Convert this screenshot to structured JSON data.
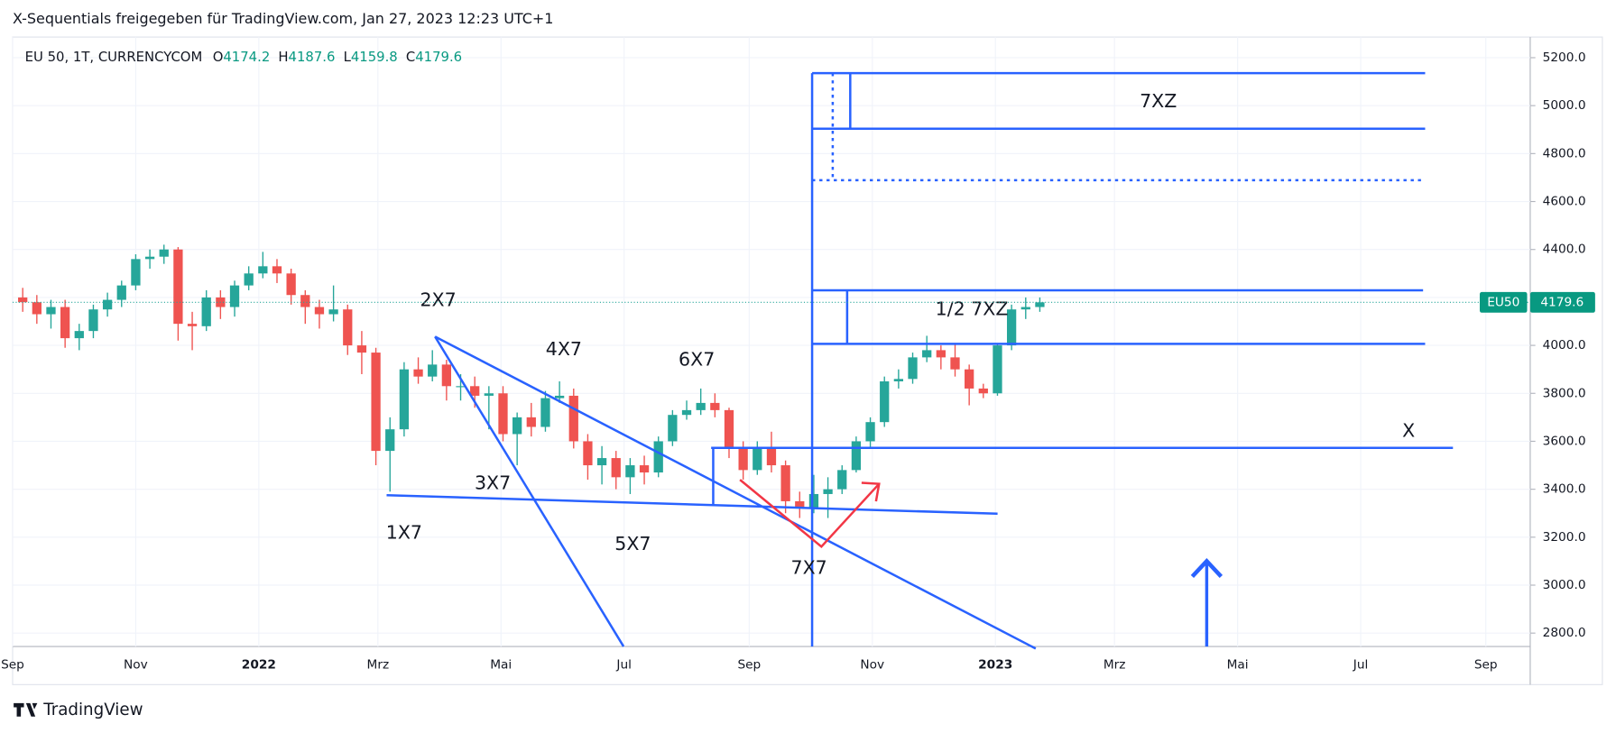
{
  "header": {
    "title": "X-Sequentials freigegeben für TradingView.com, Jan 27, 2023 12:23 UTC+1"
  },
  "legend": {
    "symbol": "EU 50, 1T, CURRENCYCOM",
    "o_label": "O",
    "o": "4174.2",
    "h_label": "H",
    "h": "4187.6",
    "l_label": "L",
    "l": "4159.8",
    "c_label": "C",
    "c": "4179.6"
  },
  "price_tag": {
    "name": "EU50",
    "value": "4179.6"
  },
  "footer": {
    "brand": "TradingView"
  },
  "annotations": [
    "2X7",
    "4X7",
    "6X7",
    "3X7",
    "1X7",
    "5X7",
    "7X7",
    "7XZ",
    "1/2 7XZ",
    "X"
  ],
  "chart_data": {
    "type": "candlestick",
    "up_color": "#26a69a",
    "down_color": "#ef5350",
    "last_price": 4179.6,
    "xlim": [
      "2021-09-01",
      "2023-09-23"
    ],
    "xticks": [
      {
        "value": "2021-09-01",
        "label": "Sep"
      },
      {
        "value": "2021-11-01",
        "label": "Nov"
      },
      {
        "value": "2022-01-01",
        "label": "2022"
      },
      {
        "value": "2022-03-01",
        "label": "Mrz"
      },
      {
        "value": "2022-05-01",
        "label": "Mai"
      },
      {
        "value": "2022-07-01",
        "label": "Jul"
      },
      {
        "value": "2022-09-01",
        "label": "Sep"
      },
      {
        "value": "2022-11-01",
        "label": "Nov"
      },
      {
        "value": "2023-01-01",
        "label": "2023"
      },
      {
        "value": "2023-03-01",
        "label": "Mrz"
      },
      {
        "value": "2023-05-01",
        "label": "Mai"
      },
      {
        "value": "2023-07-01",
        "label": "Jul"
      },
      {
        "value": "2023-09-01",
        "label": "Sep"
      }
    ],
    "ylim": [
      2744,
      5286
    ],
    "yticks": [
      {
        "value": 2800,
        "label": "2800.0"
      },
      {
        "value": 3000,
        "label": "3000.0"
      },
      {
        "value": 3200,
        "label": "3200.0"
      },
      {
        "value": 3400,
        "label": "3400.0"
      },
      {
        "value": 3600,
        "label": "3600.0"
      },
      {
        "value": 3800,
        "label": "3800.0"
      },
      {
        "value": 4000,
        "label": "4000.0"
      },
      {
        "value": 4200,
        "label": "4200.0"
      },
      {
        "value": 4400,
        "label": "4400.0"
      },
      {
        "value": 4600,
        "label": "4600.0"
      },
      {
        "value": 4800,
        "label": "4800.0"
      },
      {
        "value": 5000,
        "label": "5000.0"
      },
      {
        "value": 5200,
        "label": "5200.0"
      }
    ],
    "grid": true,
    "x": [
      "2021-09-06",
      "2021-09-13",
      "2021-09-20",
      "2021-09-27",
      "2021-10-04",
      "2021-10-11",
      "2021-10-18",
      "2021-10-25",
      "2021-11-01",
      "2021-11-08",
      "2021-11-15",
      "2021-11-22",
      "2021-11-29",
      "2021-12-06",
      "2021-12-13",
      "2021-12-20",
      "2021-12-27",
      "2022-01-03",
      "2022-01-10",
      "2022-01-17",
      "2022-01-24",
      "2022-01-31",
      "2022-02-07",
      "2022-02-14",
      "2022-02-21",
      "2022-02-28",
      "2022-03-07",
      "2022-03-14",
      "2022-03-21",
      "2022-03-28",
      "2022-04-04",
      "2022-04-11",
      "2022-04-18",
      "2022-04-25",
      "2022-05-02",
      "2022-05-09",
      "2022-05-16",
      "2022-05-23",
      "2022-05-30",
      "2022-06-06",
      "2022-06-13",
      "2022-06-20",
      "2022-06-27",
      "2022-07-04",
      "2022-07-11",
      "2022-07-18",
      "2022-07-25",
      "2022-08-01",
      "2022-08-08",
      "2022-08-15",
      "2022-08-22",
      "2022-08-29",
      "2022-09-05",
      "2022-09-12",
      "2022-09-19",
      "2022-09-26",
      "2022-10-03",
      "2022-10-10",
      "2022-10-17",
      "2022-10-24",
      "2022-10-31",
      "2022-11-07",
      "2022-11-14",
      "2022-11-21",
      "2022-11-28",
      "2022-12-05",
      "2022-12-12",
      "2022-12-19",
      "2022-12-26",
      "2023-01-02",
      "2023-01-09",
      "2023-01-16",
      "2023-01-23"
    ],
    "ohlc": [
      [
        4200,
        4240,
        4140,
        4180
      ],
      [
        4180,
        4210,
        4090,
        4130
      ],
      [
        4130,
        4190,
        4070,
        4160
      ],
      [
        4160,
        4190,
        3990,
        4030
      ],
      [
        4030,
        4090,
        3980,
        4060
      ],
      [
        4060,
        4170,
        4030,
        4150
      ],
      [
        4150,
        4220,
        4120,
        4190
      ],
      [
        4190,
        4270,
        4160,
        4250
      ],
      [
        4250,
        4380,
        4230,
        4360
      ],
      [
        4360,
        4400,
        4320,
        4370
      ],
      [
        4370,
        4420,
        4340,
        4400
      ],
      [
        4400,
        4410,
        4020,
        4090
      ],
      [
        4090,
        4140,
        3980,
        4080
      ],
      [
        4080,
        4230,
        4060,
        4200
      ],
      [
        4200,
        4230,
        4110,
        4160
      ],
      [
        4160,
        4270,
        4120,
        4250
      ],
      [
        4250,
        4330,
        4230,
        4300
      ],
      [
        4300,
        4390,
        4280,
        4330
      ],
      [
        4330,
        4360,
        4260,
        4300
      ],
      [
        4300,
        4320,
        4170,
        4210
      ],
      [
        4210,
        4230,
        4090,
        4160
      ],
      [
        4160,
        4190,
        4070,
        4130
      ],
      [
        4130,
        4250,
        4100,
        4150
      ],
      [
        4150,
        4170,
        3960,
        4000
      ],
      [
        4000,
        4060,
        3880,
        3970
      ],
      [
        3970,
        3990,
        3500,
        3560
      ],
      [
        3560,
        3700,
        3390,
        3650
      ],
      [
        3650,
        3930,
        3620,
        3900
      ],
      [
        3900,
        3950,
        3840,
        3870
      ],
      [
        3870,
        3980,
        3850,
        3920
      ],
      [
        3920,
        3940,
        3770,
        3830
      ],
      [
        3830,
        3880,
        3770,
        3830
      ],
      [
        3830,
        3870,
        3740,
        3790
      ],
      [
        3790,
        3830,
        3650,
        3800
      ],
      [
        3800,
        3830,
        3600,
        3630
      ],
      [
        3630,
        3720,
        3500,
        3700
      ],
      [
        3700,
        3760,
        3620,
        3660
      ],
      [
        3660,
        3810,
        3640,
        3780
      ],
      [
        3780,
        3850,
        3760,
        3790
      ],
      [
        3790,
        3820,
        3570,
        3600
      ],
      [
        3600,
        3630,
        3440,
        3500
      ],
      [
        3500,
        3580,
        3420,
        3530
      ],
      [
        3530,
        3560,
        3400,
        3450
      ],
      [
        3450,
        3530,
        3380,
        3500
      ],
      [
        3500,
        3540,
        3420,
        3470
      ],
      [
        3470,
        3620,
        3450,
        3600
      ],
      [
        3600,
        3730,
        3580,
        3710
      ],
      [
        3710,
        3770,
        3690,
        3730
      ],
      [
        3730,
        3820,
        3710,
        3760
      ],
      [
        3760,
        3800,
        3700,
        3730
      ],
      [
        3730,
        3740,
        3530,
        3570
      ],
      [
        3570,
        3600,
        3440,
        3480
      ],
      [
        3480,
        3600,
        3460,
        3570
      ],
      [
        3570,
        3640,
        3470,
        3500
      ],
      [
        3500,
        3520,
        3300,
        3350
      ],
      [
        3350,
        3390,
        3280,
        3320
      ],
      [
        3320,
        3460,
        3300,
        3380
      ],
      [
        3380,
        3450,
        3280,
        3400
      ],
      [
        3400,
        3500,
        3380,
        3480
      ],
      [
        3480,
        3620,
        3470,
        3600
      ],
      [
        3600,
        3700,
        3570,
        3680
      ],
      [
        3680,
        3870,
        3660,
        3850
      ],
      [
        3850,
        3900,
        3820,
        3860
      ],
      [
        3860,
        3970,
        3840,
        3950
      ],
      [
        3950,
        4040,
        3930,
        3980
      ],
      [
        3980,
        4000,
        3900,
        3950
      ],
      [
        3950,
        4010,
        3870,
        3900
      ],
      [
        3900,
        3920,
        3750,
        3820
      ],
      [
        3820,
        3840,
        3780,
        3800
      ],
      [
        3800,
        4010,
        3790,
        4000
      ],
      [
        4000,
        4170,
        3980,
        4150
      ],
      [
        4150,
        4200,
        4110,
        4160
      ],
      [
        4160,
        4200,
        4140,
        4179.6
      ]
    ]
  }
}
